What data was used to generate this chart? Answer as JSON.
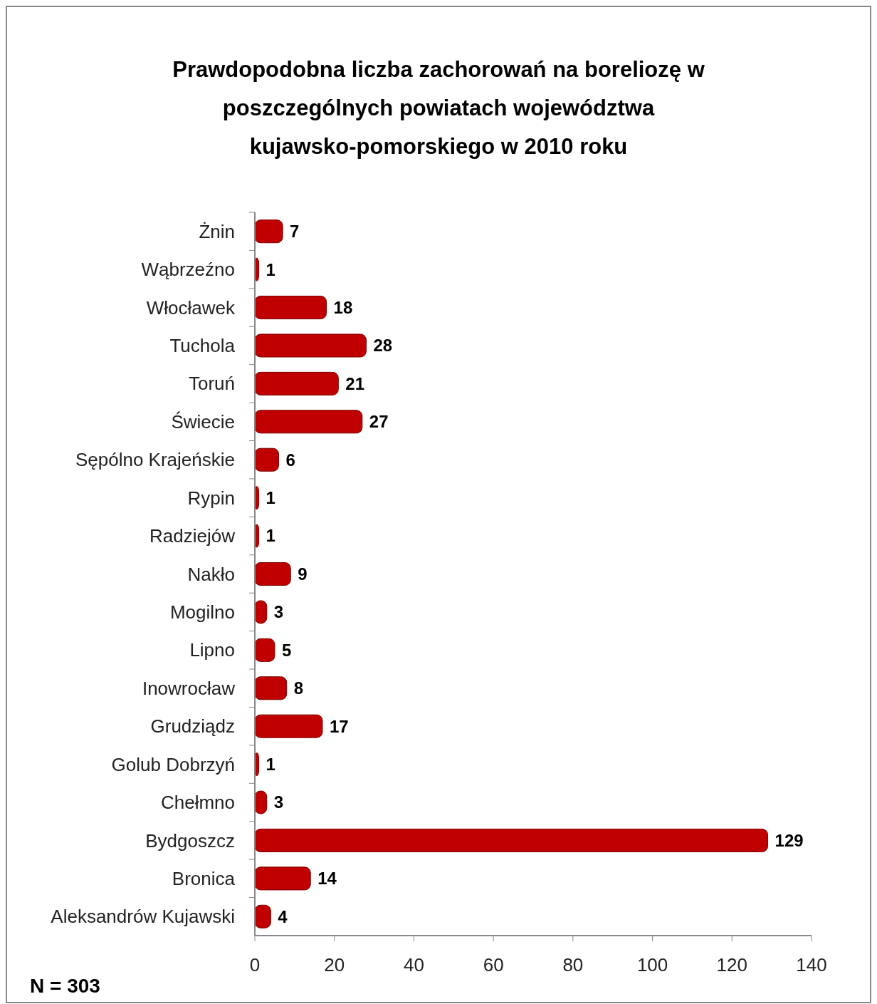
{
  "chart_data": {
    "type": "bar",
    "orientation": "horizontal",
    "title": "Prawdopodobna liczba zachorowań na boreliozę w poszczególnych powiatach województwa kujawsko-pomorskiego w 2010 roku",
    "categories": [
      "Żnin",
      "Wąbrzeźno",
      "Włocławek",
      "Tuchola",
      "Toruń",
      "Świecie",
      "Sępólno Krajeńskie",
      "Rypin",
      "Radziejów",
      "Nakło",
      "Mogilno",
      "Lipno",
      "Inowrocław",
      "Grudziądz",
      "Golub Dobrzyń",
      "Chełmno",
      "Bydgoszcz",
      "Bronica",
      "Aleksandrów Kujawski"
    ],
    "values": [
      7,
      1,
      18,
      28,
      21,
      27,
      6,
      1,
      1,
      9,
      3,
      5,
      8,
      17,
      1,
      3,
      129,
      14,
      4
    ],
    "color": "#c00000",
    "xlim": [
      0,
      140
    ],
    "xticks": [
      0,
      20,
      40,
      60,
      80,
      100,
      120,
      140
    ],
    "data_labels": true,
    "grid": false,
    "annotations": [
      "N = 303"
    ]
  }
}
